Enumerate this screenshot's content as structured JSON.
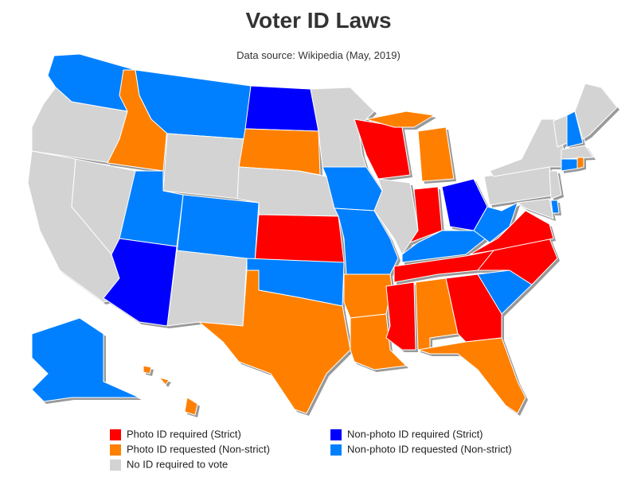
{
  "title": "Voter ID Laws",
  "subtitle": "Data source: Wikipedia (May, 2019)",
  "legend": [
    {
      "label": "Photo ID required (Strict)",
      "color": "#ff0000"
    },
    {
      "label": "Photo ID requested (Non-strict)",
      "color": "#ff8000"
    },
    {
      "label": "No ID required to vote",
      "color": "#d3d3d3"
    },
    {
      "label": "Non-photo ID required (Strict)",
      "color": "#0000ff"
    },
    {
      "label": "Non-photo ID requested (Non-strict)",
      "color": "#0080ff"
    }
  ]
}
